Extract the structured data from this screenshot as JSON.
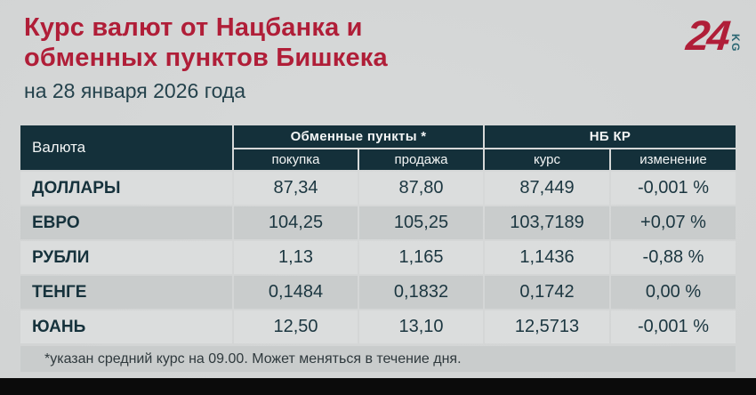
{
  "header": {
    "title_line1": "Курс валют от Нацбанка и",
    "title_line2": "обменных пунктов Бишкека",
    "date": "на 28 января 2026 года"
  },
  "logo": {
    "number": "24",
    "country_code": "KG"
  },
  "chart_data": {
    "type": "table",
    "title": "Курс валют от Нацбанка и обменных пунктов Бишкека",
    "subtitle": "на 28 января 2026 года",
    "column_groups": [
      {
        "label": "Обменные пункты *",
        "columns": [
          "покупка",
          "продажа"
        ]
      },
      {
        "label": "НБ КР",
        "columns": [
          "курс",
          "изменение"
        ]
      }
    ],
    "columns": [
      "Валюта",
      "покупка",
      "продажа",
      "курс",
      "изменение"
    ],
    "rows": [
      [
        "ДОЛЛАРЫ",
        "87,34",
        "87,80",
        "87,449",
        "-0,001 %"
      ],
      [
        "ЕВРО",
        "104,25",
        "105,25",
        "103,7189",
        "+0,07 %"
      ],
      [
        "РУБЛИ",
        "1,13",
        "1,165",
        "1,1436",
        "-0,88 %"
      ],
      [
        "ТЕНГЕ",
        "0,1484",
        "0,1832",
        "0,1742",
        "0,00 %"
      ],
      [
        "ЮАНЬ",
        "12,50",
        "13,10",
        "12,5713",
        "-0,001 %"
      ]
    ],
    "footnote": "*указан средний курс на 09.00. Может меняться в течение дня."
  },
  "colors": {
    "accent_red": "#b01e38",
    "table_header_bg": "#14303a",
    "text_dark_teal": "#1b3640",
    "row_light": "#dbdddd",
    "row_dark": "#c9cccc",
    "page_bg": "#d2d4d4",
    "bottom_bar_black": "#0b0b0b",
    "logo_kg_teal": "#2a6672"
  }
}
